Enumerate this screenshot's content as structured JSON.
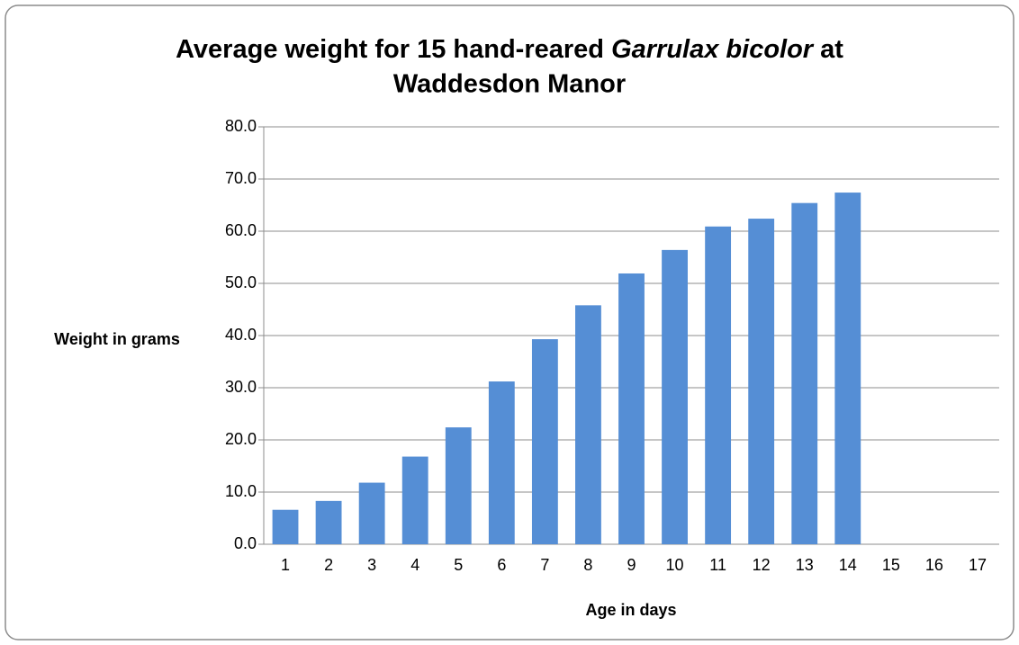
{
  "chart_data": {
    "type": "bar",
    "title": [
      "Average weight for 15 hand-reared ",
      "Garrulax bicolor",
      " at",
      "Waddesdon Manor"
    ],
    "xlabel": "Age in days",
    "ylabel": "Weight in grams",
    "categories": [
      "1",
      "2",
      "3",
      "4",
      "5",
      "6",
      "7",
      "8",
      "9",
      "10",
      "11",
      "12",
      "13",
      "14",
      "15",
      "16",
      "17"
    ],
    "values": [
      6.6,
      8.3,
      11.8,
      16.8,
      22.4,
      31.2,
      39.3,
      45.8,
      51.9,
      56.4,
      60.9,
      62.4,
      65.4,
      67.4,
      null,
      null,
      null
    ],
    "color": "#558ed5",
    "ylim": [
      0,
      80
    ],
    "yticks": [
      {
        "value": 0,
        "label": "0.0"
      },
      {
        "value": 10,
        "label": "10.0"
      },
      {
        "value": 20,
        "label": "20.0"
      },
      {
        "value": 30,
        "label": "30.0"
      },
      {
        "value": 40,
        "label": "40.0"
      },
      {
        "value": 50,
        "label": "50.0"
      },
      {
        "value": 60,
        "label": "60.0"
      },
      {
        "value": 70,
        "label": "70.0"
      },
      {
        "value": 80,
        "label": "80.0"
      }
    ],
    "grid": true
  }
}
